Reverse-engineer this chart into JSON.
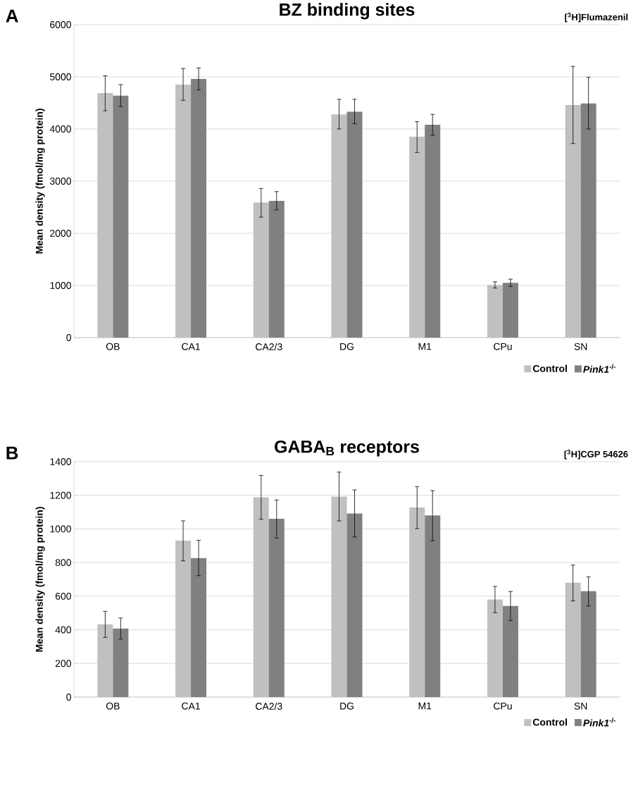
{
  "chart_data": [
    {
      "type": "bar",
      "title": "BZ binding sites",
      "ylabel": "Mean density (fmol/mg protein)",
      "annotations": [
        "A",
        "[$^{3}$H]Flumazenil"
      ],
      "categories": [
        "OB",
        "CA1",
        "CA2/3",
        "DG",
        "M1",
        "CPu",
        "SN"
      ],
      "series": [
        {
          "name": "Control",
          "color": "#c0c0c0",
          "values": [
            4690,
            4850,
            2590,
            4280,
            3850,
            1010,
            4460
          ],
          "errors": [
            [
              4350,
              5020
            ],
            [
              4550,
              5160
            ],
            [
              2310,
              2860
            ],
            [
              4000,
              4570
            ],
            [
              3550,
              4140
            ],
            [
              950,
              1070
            ],
            [
              3720,
              5200
            ]
          ]
        },
        {
          "name": "*Pink1*$^{-/-}$",
          "color": "#808080",
          "values": [
            4640,
            4960,
            2620,
            4330,
            4080,
            1050,
            4490
          ],
          "errors": [
            [
              4430,
              4850
            ],
            [
              4750,
              5170
            ],
            [
              2450,
              2800
            ],
            [
              4100,
              4570
            ],
            [
              3880,
              4280
            ],
            [
              980,
              1120
            ],
            [
              4000,
              4990
            ]
          ]
        }
      ],
      "ylim": [
        0,
        6000
      ],
      "yticks": [
        0,
        1000,
        2000,
        3000,
        4000,
        5000,
        6000
      ],
      "grid": "y",
      "legend": "bottom right"
    },
    {
      "type": "bar",
      "title": "GABA$_{B}$ receptors",
      "ylabel": "Mean density (fmol/mg protein)",
      "annotations": [
        "B",
        "[$^{3}$H]CGP 54626"
      ],
      "categories": [
        "OB",
        "CA1",
        "CA2/3",
        "DG",
        "M1",
        "CPu",
        "SN"
      ],
      "series": [
        {
          "name": "Control",
          "color": "#c0c0c0",
          "values": [
            433,
            930,
            1188,
            1193,
            1128,
            580,
            680
          ],
          "errors": [
            [
              355,
              510
            ],
            [
              810,
              1048
            ],
            [
              1058,
              1318
            ],
            [
              1048,
              1338
            ],
            [
              1002,
              1252
            ],
            [
              502,
              658
            ],
            [
              572,
              785
            ]
          ]
        },
        {
          "name": "*Pink1*$^{-/-}$",
          "color": "#808080",
          "values": [
            408,
            827,
            1060,
            1092,
            1080,
            542,
            630
          ],
          "errors": [
            [
              345,
              470
            ],
            [
              722,
              932
            ],
            [
              945,
              1172
            ],
            [
              952,
              1232
            ],
            [
              930,
              1228
            ],
            [
              455,
              628
            ],
            [
              542,
              715
            ]
          ]
        }
      ],
      "ylim": [
        0,
        1400
      ],
      "yticks": [
        0,
        200,
        400,
        600,
        800,
        1000,
        1200,
        1400
      ],
      "grid": "y",
      "legend": "bottom right"
    }
  ]
}
